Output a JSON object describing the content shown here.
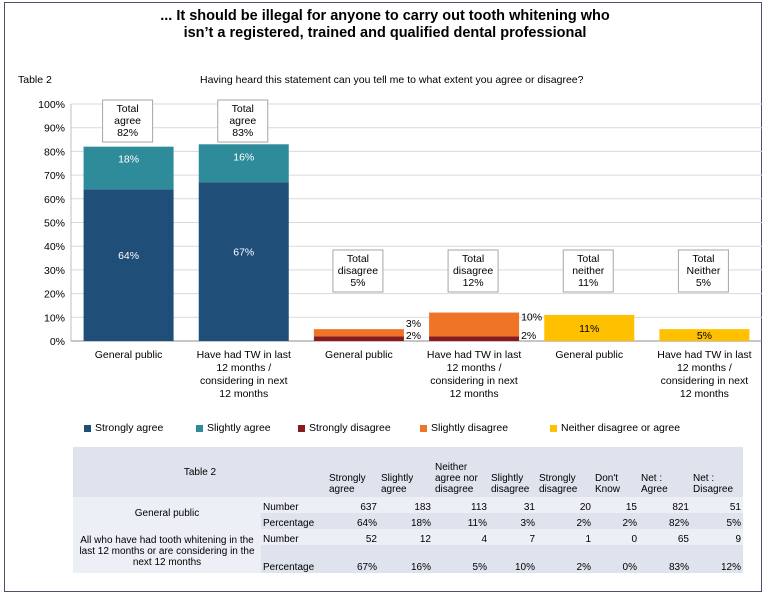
{
  "title": "... It should be illegal for anyone to carry out tooth whitening who isn’t a registered, trained and qualified dental professional",
  "subtitle": "Having heard this statement can you tell me to what extent you agree or disagree?",
  "table_label": "Table 2",
  "colors": {
    "strongly_agree": "#1f4e79",
    "slightly_agree": "#2e8b9a",
    "strongly_disagree": "#8b1a1a",
    "slightly_disagree": "#f07427",
    "neither": "#ffc000"
  },
  "chart_data": {
    "type": "bar",
    "stacked": true,
    "yticks": [
      "0%",
      "10%",
      "20%",
      "30%",
      "40%",
      "50%",
      "60%",
      "70%",
      "80%",
      "90%",
      "100%"
    ],
    "ylim": [
      0,
      100
    ],
    "grid": true,
    "legend_position": "bottom",
    "categories": [
      "General public",
      "Have had TW in last 12 months / considering in next 12 months",
      "General public",
      "Have had TW in last 12 months / considering in next 12 months",
      "General public",
      "Have had TW in last 12 months / considering in next 12 months"
    ],
    "series": [
      {
        "name": "Strongly agree",
        "values": [
          64,
          67,
          0,
          0,
          0,
          0
        ],
        "labels": [
          "64%",
          "67%",
          "",
          "",
          "",
          ""
        ]
      },
      {
        "name": "Slightly agree",
        "values": [
          18,
          16,
          0,
          0,
          0,
          0
        ],
        "labels": [
          "18%",
          "16%",
          "",
          "",
          "",
          ""
        ]
      },
      {
        "name": "Strongly disagree",
        "values": [
          0,
          0,
          2,
          2,
          0,
          0
        ],
        "labels": [
          "",
          "",
          "2%",
          "2%",
          "",
          ""
        ]
      },
      {
        "name": "Slightly disagree",
        "values": [
          0,
          0,
          3,
          10,
          0,
          0
        ],
        "labels": [
          "",
          "",
          "3%",
          "10%",
          "",
          ""
        ]
      },
      {
        "name": "Neither disagree or agree",
        "values": [
          0,
          0,
          0,
          0,
          11,
          5
        ],
        "labels": [
          "",
          "",
          "",
          "",
          "11%",
          "5%"
        ]
      }
    ],
    "totals": [
      "Total agree 82%",
      "Total agree 83%",
      "Total disagree 5%",
      "Total disagree 12%",
      "Total neither 11%",
      "Total Neither 5%"
    ]
  },
  "table": {
    "title": "Table 2",
    "headers": [
      "Strongly agree",
      "Slightly agree",
      "Neither agree nor disagree",
      "Slightly disagree",
      "Strongly disagree",
      "Don't Know",
      "Net : Agree",
      "Net : Disagree"
    ],
    "groups": [
      {
        "label": "General public",
        "rows": [
          {
            "measure": "Number",
            "values": [
              "637",
              "183",
              "113",
              "31",
              "20",
              "15",
              "821",
              "51"
            ]
          },
          {
            "measure": "Percentage",
            "values": [
              "64%",
              "18%",
              "11%",
              "3%",
              "2%",
              "2%",
              "82%",
              "5%"
            ]
          }
        ]
      },
      {
        "label": "All who have had tooth whitening in the last 12 months or are considering in the next 12 months",
        "rows": [
          {
            "measure": "Number",
            "values": [
              "52",
              "12",
              "4",
              "7",
              "1",
              "0",
              "65",
              "9"
            ]
          },
          {
            "measure": "Percentage",
            "values": [
              "67%",
              "16%",
              "5%",
              "10%",
              "2%",
              "0%",
              "83%",
              "12%"
            ]
          }
        ]
      }
    ]
  }
}
